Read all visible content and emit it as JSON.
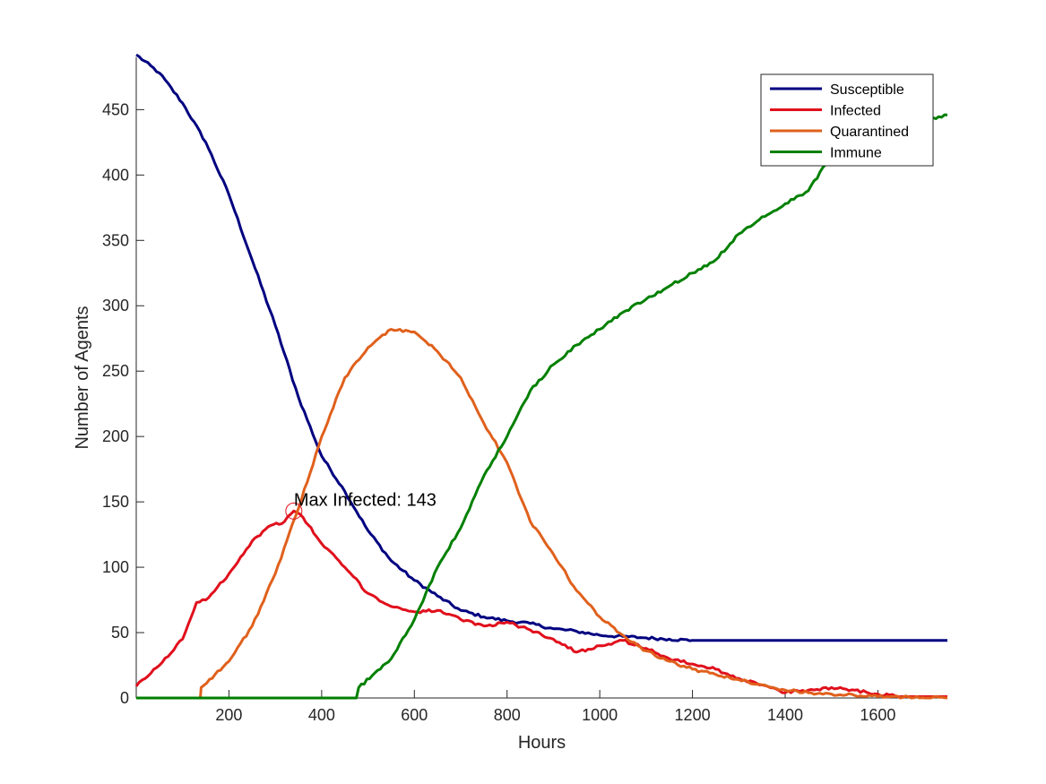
{
  "chart_data": {
    "type": "line",
    "title": "",
    "xlabel": "Hours",
    "ylabel": "Number of Agents",
    "xlim": [
      0,
      1750
    ],
    "ylim": [
      0,
      490
    ],
    "xticks": [
      200,
      400,
      600,
      800,
      1000,
      1200,
      1400,
      1600
    ],
    "yticks": [
      0,
      50,
      100,
      150,
      200,
      250,
      300,
      350,
      400,
      450
    ],
    "grid": false,
    "legend_position": "top-right",
    "annotation": {
      "text": "Max Infected: 143",
      "x": 340,
      "y": 143
    },
    "series": [
      {
        "name": "Susceptible",
        "color": "#000080",
        "points": [
          [
            0,
            492
          ],
          [
            50,
            478
          ],
          [
            100,
            455
          ],
          [
            150,
            425
          ],
          [
            200,
            385
          ],
          [
            250,
            335
          ],
          [
            300,
            285
          ],
          [
            350,
            230
          ],
          [
            400,
            185
          ],
          [
            450,
            158
          ],
          [
            500,
            128
          ],
          [
            550,
            105
          ],
          [
            600,
            90
          ],
          [
            650,
            78
          ],
          [
            700,
            67
          ],
          [
            750,
            62
          ],
          [
            800,
            59
          ],
          [
            850,
            57
          ],
          [
            900,
            53
          ],
          [
            950,
            51
          ],
          [
            1000,
            48
          ],
          [
            1050,
            47
          ],
          [
            1100,
            46
          ],
          [
            1150,
            45
          ],
          [
            1200,
            44
          ],
          [
            1750,
            44
          ]
        ]
      },
      {
        "name": "Infected",
        "color": "#e0101c",
        "points": [
          [
            0,
            9
          ],
          [
            50,
            25
          ],
          [
            100,
            45
          ],
          [
            130,
            73
          ],
          [
            150,
            75
          ],
          [
            200,
            95
          ],
          [
            250,
            120
          ],
          [
            290,
            132
          ],
          [
            320,
            135
          ],
          [
            340,
            143
          ],
          [
            360,
            138
          ],
          [
            400,
            118
          ],
          [
            450,
            100
          ],
          [
            500,
            80
          ],
          [
            550,
            70
          ],
          [
            600,
            66
          ],
          [
            650,
            67
          ],
          [
            700,
            60
          ],
          [
            750,
            55
          ],
          [
            800,
            58
          ],
          [
            850,
            52
          ],
          [
            900,
            45
          ],
          [
            950,
            35
          ],
          [
            1000,
            40
          ],
          [
            1050,
            44
          ],
          [
            1100,
            38
          ],
          [
            1150,
            30
          ],
          [
            1200,
            26
          ],
          [
            1250,
            22
          ],
          [
            1300,
            15
          ],
          [
            1350,
            10
          ],
          [
            1400,
            4
          ],
          [
            1450,
            6
          ],
          [
            1500,
            8
          ],
          [
            1550,
            6
          ],
          [
            1600,
            3
          ],
          [
            1650,
            1
          ],
          [
            1750,
            1
          ]
        ]
      },
      {
        "name": "Quarantined",
        "color": "#e0601c",
        "points": [
          [
            0,
            0
          ],
          [
            138,
            0
          ],
          [
            140,
            8
          ],
          [
            200,
            28
          ],
          [
            250,
            55
          ],
          [
            300,
            95
          ],
          [
            350,
            145
          ],
          [
            400,
            200
          ],
          [
            450,
            245
          ],
          [
            500,
            268
          ],
          [
            550,
            282
          ],
          [
            600,
            280
          ],
          [
            650,
            265
          ],
          [
            700,
            245
          ],
          [
            750,
            210
          ],
          [
            800,
            180
          ],
          [
            850,
            135
          ],
          [
            900,
            110
          ],
          [
            950,
            82
          ],
          [
            1000,
            62
          ],
          [
            1050,
            48
          ],
          [
            1100,
            36
          ],
          [
            1150,
            28
          ],
          [
            1200,
            22
          ],
          [
            1250,
            18
          ],
          [
            1300,
            14
          ],
          [
            1350,
            10
          ],
          [
            1400,
            6
          ],
          [
            1450,
            4
          ],
          [
            1500,
            3
          ],
          [
            1550,
            2
          ],
          [
            1600,
            1
          ],
          [
            1750,
            0
          ]
        ]
      },
      {
        "name": "Immune",
        "color": "#008000",
        "points": [
          [
            0,
            0
          ],
          [
            475,
            0
          ],
          [
            480,
            8
          ],
          [
            550,
            30
          ],
          [
            600,
            60
          ],
          [
            650,
            100
          ],
          [
            700,
            130
          ],
          [
            750,
            170
          ],
          [
            800,
            200
          ],
          [
            850,
            235
          ],
          [
            900,
            255
          ],
          [
            950,
            270
          ],
          [
            1000,
            282
          ],
          [
            1050,
            295
          ],
          [
            1100,
            305
          ],
          [
            1150,
            315
          ],
          [
            1200,
            325
          ],
          [
            1250,
            335
          ],
          [
            1300,
            355
          ],
          [
            1350,
            368
          ],
          [
            1400,
            378
          ],
          [
            1450,
            388
          ],
          [
            1500,
            415
          ],
          [
            1550,
            428
          ],
          [
            1600,
            435
          ],
          [
            1650,
            438
          ],
          [
            1700,
            442
          ],
          [
            1750,
            446
          ]
        ]
      }
    ]
  }
}
